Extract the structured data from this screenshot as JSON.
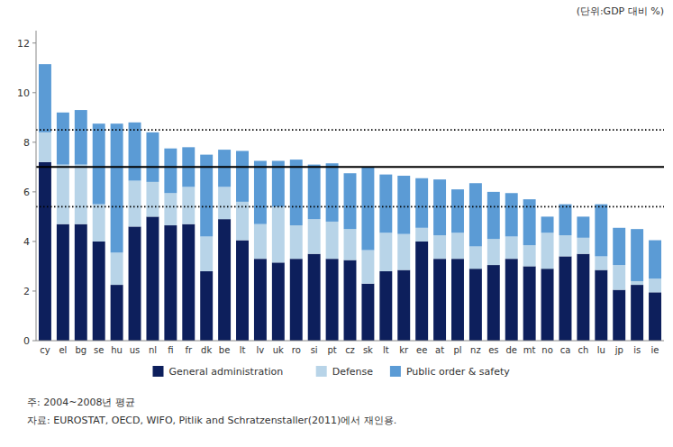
{
  "chart_data": {
    "type": "bar",
    "stacked": true,
    "y_label": "(단위:GDP 대비 %)",
    "categories": [
      "cy",
      "el",
      "bg",
      "se",
      "hu",
      "us",
      "nl",
      "fi",
      "fr",
      "dk",
      "be",
      "lt",
      "lv",
      "uk",
      "ro",
      "si",
      "pt",
      "cz",
      "sk",
      "lt",
      "kr",
      "ee",
      "at",
      "pl",
      "nz",
      "es",
      "de",
      "mt",
      "no",
      "ca",
      "ch",
      "lu",
      "jp",
      "is",
      "ie"
    ],
    "series": [
      {
        "name": "General administration",
        "color": "#0d1f5c",
        "values": [
          7.2,
          4.7,
          4.7,
          4.0,
          2.25,
          4.6,
          5.0,
          4.65,
          4.7,
          2.8,
          4.9,
          4.05,
          3.3,
          3.15,
          3.3,
          3.5,
          3.3,
          3.25,
          2.3,
          2.8,
          2.85,
          4.0,
          3.3,
          3.3,
          2.9,
          3.05,
          3.3,
          3.0,
          2.9,
          3.4,
          3.5,
          2.85,
          2.05,
          2.25,
          1.95
        ]
      },
      {
        "name": "Defense",
        "color": "#b8d4e8",
        "values": [
          1.2,
          2.4,
          2.4,
          1.5,
          1.3,
          1.85,
          1.4,
          1.3,
          1.5,
          1.4,
          1.3,
          1.55,
          1.4,
          2.25,
          1.35,
          1.4,
          1.5,
          1.25,
          1.35,
          1.55,
          1.45,
          0.55,
          0.95,
          1.05,
          0.9,
          1.05,
          0.9,
          0.85,
          1.45,
          0.85,
          0.65,
          0.55,
          1.0,
          0.15,
          0.55
        ]
      },
      {
        "name": "Public order & safety",
        "color": "#5b9bd5",
        "values": [
          2.75,
          2.1,
          2.2,
          3.25,
          5.2,
          2.35,
          2.0,
          1.8,
          1.6,
          3.3,
          1.5,
          2.05,
          2.55,
          1.85,
          2.65,
          2.2,
          2.35,
          2.25,
          3.35,
          2.35,
          2.35,
          2.0,
          2.25,
          1.75,
          2.55,
          1.9,
          1.75,
          1.85,
          0.65,
          1.25,
          0.85,
          2.1,
          1.5,
          2.1,
          1.55
        ]
      }
    ],
    "reference_lines": [
      {
        "value": 7.0,
        "line_style": "solid",
        "color": "#000000"
      },
      {
        "value": 8.5,
        "line_style": "dotted",
        "color": "#000000"
      },
      {
        "value": 5.4,
        "line_style": "dotted",
        "color": "#000000"
      }
    ],
    "ylim": [
      0,
      12.5
    ],
    "yticks": [
      0,
      2,
      4,
      6,
      8,
      10,
      12
    ],
    "grid": false,
    "legend": "bottom",
    "annotations": [
      "주: 2004~2008년 평균",
      "자료: EUROSTAT, OECD, WIFO, Pitlik and Schratzenstaller(2011)에서 재인용."
    ]
  }
}
